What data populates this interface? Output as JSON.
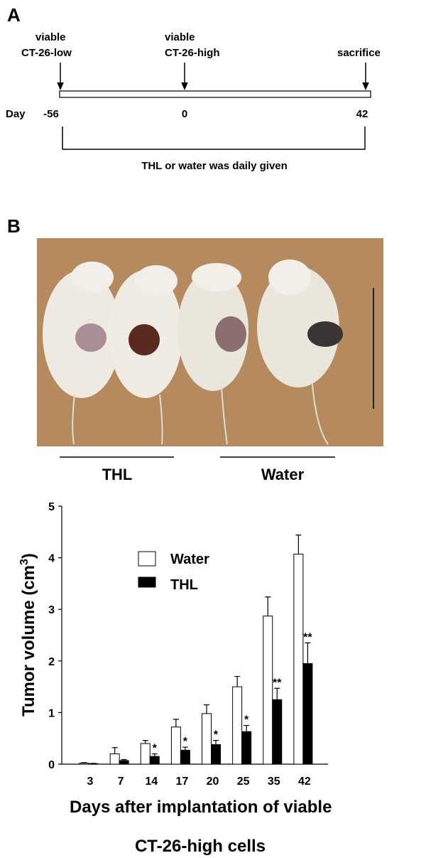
{
  "panel_a": {
    "label": "A",
    "markers": [
      {
        "top": "viable",
        "bottom": "CT-26-low"
      },
      {
        "top": "viable",
        "bottom": "CT-26-high"
      },
      {
        "top": "sacrifice"
      }
    ],
    "day_label": "Day",
    "days": [
      "-56",
      "0",
      "42"
    ],
    "treatment": "THL or water was daily given"
  },
  "panel_b": {
    "label": "B",
    "groups": [
      "THL",
      "Water"
    ]
  },
  "chart_data": {
    "type": "bar",
    "y_label": [
      "Tumor volume (cm",
      "3",
      ")"
    ],
    "x_label": [
      "Days after implantation of viable",
      "CT-26-high cells"
    ],
    "categories": [
      "3",
      "7",
      "14",
      "17",
      "20",
      "25",
      "35",
      "42"
    ],
    "series": [
      {
        "name": "Water",
        "color": "#ffffff",
        "values": [
          0.02,
          0.2,
          0.4,
          0.72,
          0.98,
          1.5,
          2.87,
          4.07
        ],
        "errors": [
          0.01,
          0.12,
          0.06,
          0.15,
          0.17,
          0.2,
          0.37,
          0.37
        ]
      },
      {
        "name": "THL",
        "color": "#000000",
        "values": [
          0.01,
          0.07,
          0.15,
          0.27,
          0.38,
          0.63,
          1.25,
          1.95
        ],
        "errors": [
          0.005,
          0.02,
          0.05,
          0.06,
          0.08,
          0.12,
          0.22,
          0.4
        ],
        "significance": [
          null,
          null,
          "*",
          "*",
          "*",
          "*",
          "**",
          "**"
        ]
      }
    ],
    "ylim": [
      0,
      5
    ],
    "yticks": [
      0,
      1,
      2,
      3,
      4,
      5
    ]
  }
}
